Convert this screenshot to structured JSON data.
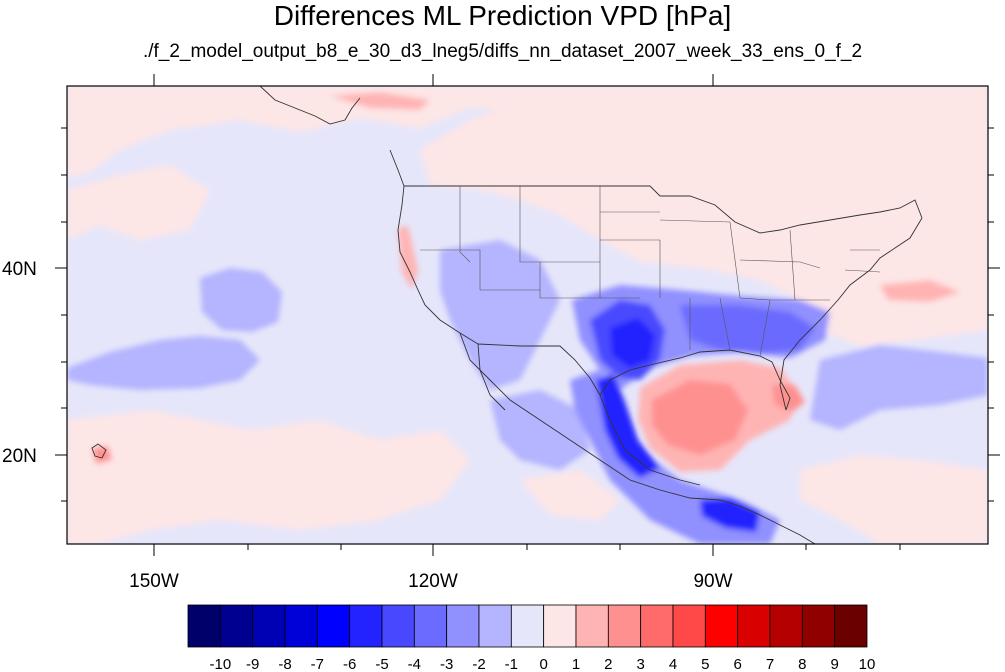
{
  "title": "Differences ML Prediction VPD [hPa]",
  "subtitle": "./f_2_model_output_b8_e_30_d3_lneg5/diffs_nn_dataset_2007_week_33_ens_0_f_2",
  "lat_labels": [
    "40N",
    "20N"
  ],
  "lon_labels": [
    "150W",
    "120W",
    "90W"
  ],
  "colorbar": {
    "labels": [
      "-10",
      "-9",
      "-8",
      "-7",
      "-6",
      "-5",
      "-4",
      "-3",
      "-2",
      "-1",
      "0",
      "1",
      "2",
      "3",
      "4",
      "5",
      "6",
      "7",
      "8",
      "9",
      "10"
    ],
    "colors": [
      "#00006b",
      "#000090",
      "#0000b4",
      "#0000d8",
      "#0000ff",
      "#2323ff",
      "#4848ff",
      "#6b6bff",
      "#9090ff",
      "#b4b4ff",
      "#e6e6fa",
      "#fde6e6",
      "#ffb4b4",
      "#ff9090",
      "#ff6b6b",
      "#ff4848",
      "#ff0000",
      "#d80000",
      "#b40000",
      "#900000",
      "#6b0000"
    ]
  }
}
